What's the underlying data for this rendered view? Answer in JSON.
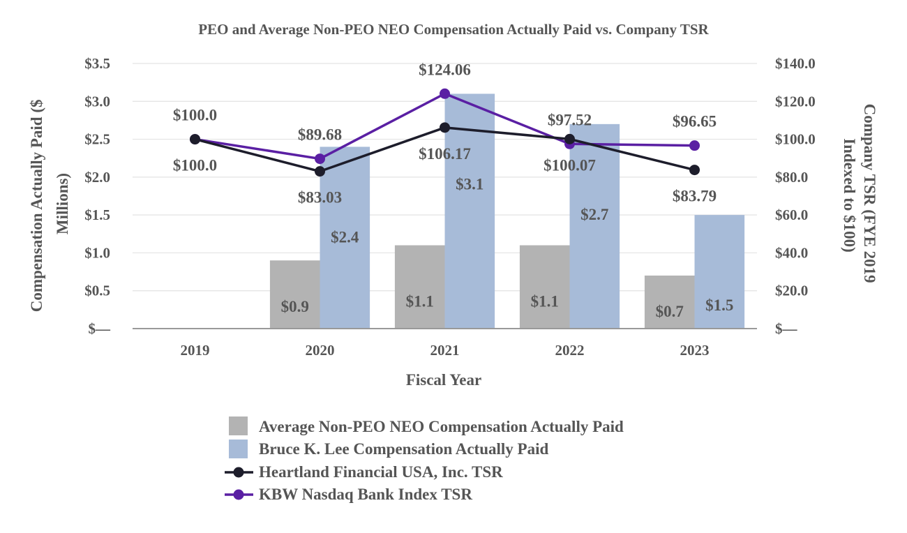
{
  "chart_data": {
    "type": "bar",
    "title": "PEO and Average Non-PEO NEO Compensation Actually Paid vs. Company TSR",
    "xlabel": "Fiscal Year",
    "ylabel_left": "Compensation Actually Paid ($ Millions)",
    "ylabel_left_lines": [
      "Compensation Actually Paid ($",
      "Millions)"
    ],
    "ylabel_right": "Company TSR (FYE 2019 Indexed to $100)",
    "ylabel_right_lines": [
      "Company TSR (FYE 2019",
      "Indexed to $100)"
    ],
    "categories": [
      "2019",
      "2020",
      "2021",
      "2022",
      "2023"
    ],
    "ylim_left": [
      0,
      3.5
    ],
    "ylim_right": [
      0,
      140
    ],
    "yticks_left": [
      {
        "value": 0,
        "label": "$—"
      },
      {
        "value": 0.5,
        "label": "$0.5"
      },
      {
        "value": 1.0,
        "label": "$1.0"
      },
      {
        "value": 1.5,
        "label": "$1.5"
      },
      {
        "value": 2.0,
        "label": "$2.0"
      },
      {
        "value": 2.5,
        "label": "$2.5"
      },
      {
        "value": 3.0,
        "label": "$3.0"
      },
      {
        "value": 3.5,
        "label": "$3.5"
      }
    ],
    "yticks_right": [
      {
        "value": 0,
        "label": "$—"
      },
      {
        "value": 20,
        "label": "$20.0"
      },
      {
        "value": 40,
        "label": "$40.0"
      },
      {
        "value": 60,
        "label": "$60.0"
      },
      {
        "value": 80,
        "label": "$80.0"
      },
      {
        "value": 100,
        "label": "$100.0"
      },
      {
        "value": 120,
        "label": "$120.0"
      },
      {
        "value": 140,
        "label": "$140.0"
      }
    ],
    "grid": true,
    "legend_position": "bottom",
    "bar_series": [
      {
        "name": "Average Non-PEO NEO Compensation Actually Paid",
        "color": "#b3b3b3",
        "values": [
          null,
          0.9,
          1.1,
          1.1,
          0.7
        ],
        "labels": [
          "",
          "$0.9",
          "$1.1",
          "$1.1",
          "$0.7"
        ]
      },
      {
        "name": "Bruce K. Lee Compensation Actually Paid",
        "color": "#a7bbd8",
        "values": [
          null,
          2.4,
          3.1,
          2.7,
          1.5
        ],
        "labels": [
          "",
          "$2.4",
          "$3.1",
          "$2.7",
          "$1.5"
        ]
      }
    ],
    "line_series": [
      {
        "name": "Heartland Financial USA, Inc. TSR",
        "color": "#1d1d2b",
        "axis": "right",
        "values": [
          100.0,
          83.03,
          106.17,
          100.07,
          83.79
        ],
        "labels": [
          "$100.0",
          "$83.03",
          "$106.17",
          "$100.07",
          "$83.79"
        ]
      },
      {
        "name": "KBW Nasdaq Bank Index TSR",
        "color": "#5a1fa3",
        "axis": "right",
        "values": [
          100.0,
          89.68,
          124.06,
          97.52,
          96.65
        ],
        "labels": [
          "$100.0",
          "$89.68",
          "$124.06",
          "$97.52",
          "$96.65"
        ]
      }
    ]
  }
}
